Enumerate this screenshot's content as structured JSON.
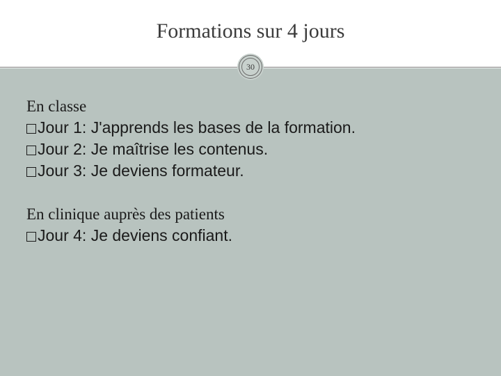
{
  "title": "Formations sur 4 jours",
  "slide_number": "30",
  "section1": {
    "heading": "En classe",
    "items": [
      "Jour 1: J'apprends les bases de la formation.",
      "Jour 2: Je maîtrise les contenus.",
      "Jour 3: Je deviens formateur."
    ]
  },
  "section2": {
    "heading": "En clinique auprès des patients",
    "items": [
      "Jour 4: Je deviens confiant."
    ]
  },
  "colors": {
    "content_bg": "#b8c3bf",
    "text": "#1a1a1a",
    "title": "#3b3b3b",
    "line": "#7a7a7a"
  }
}
